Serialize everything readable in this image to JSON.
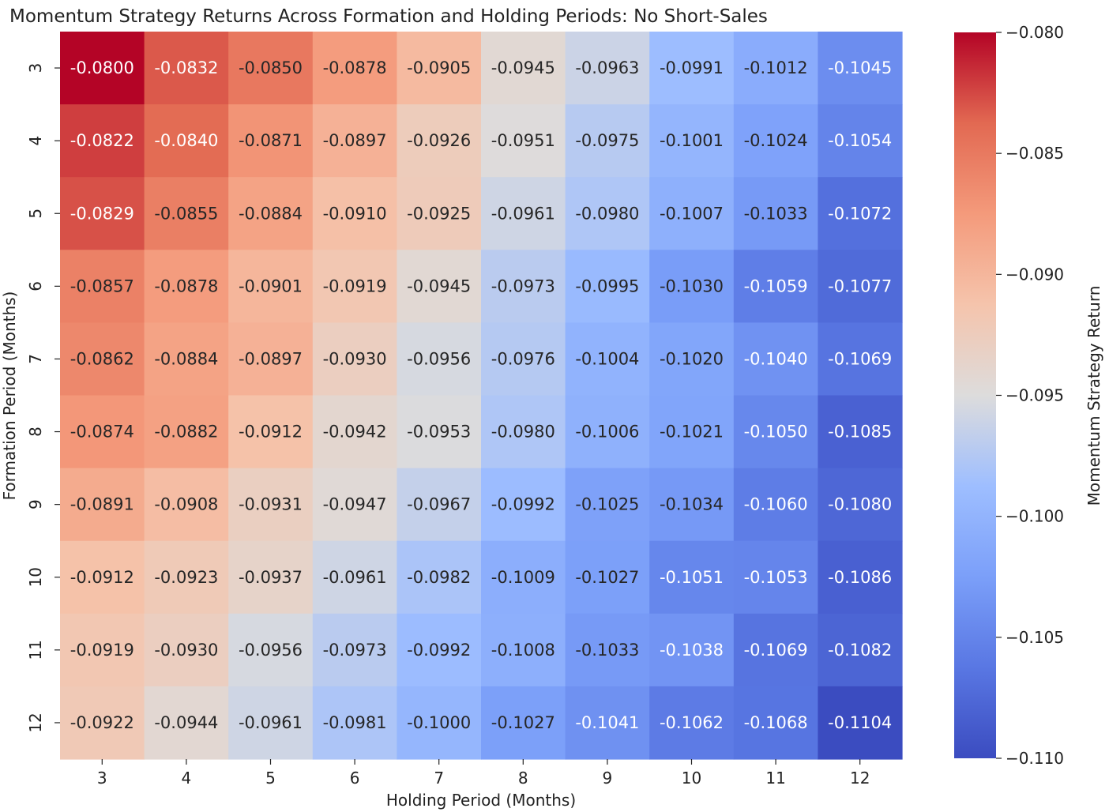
{
  "chart_data": {
    "type": "heatmap",
    "title": "Momentum Strategy Returns Across Formation and Holding Periods: No Short-Sales",
    "xlabel": "Holding Period (Months)",
    "ylabel": "Formation Period (Months)",
    "x_categories": [
      "3",
      "4",
      "5",
      "6",
      "7",
      "8",
      "9",
      "10",
      "11",
      "12"
    ],
    "y_categories": [
      "3",
      "4",
      "5",
      "6",
      "7",
      "8",
      "9",
      "10",
      "11",
      "12"
    ],
    "values": [
      [
        -0.08,
        -0.0832,
        -0.085,
        -0.0878,
        -0.0905,
        -0.0945,
        -0.0963,
        -0.0991,
        -0.1012,
        -0.1045
      ],
      [
        -0.0822,
        -0.084,
        -0.0871,
        -0.0897,
        -0.0926,
        -0.0951,
        -0.0975,
        -0.1001,
        -0.1024,
        -0.1054
      ],
      [
        -0.0829,
        -0.0855,
        -0.0884,
        -0.091,
        -0.0925,
        -0.0961,
        -0.098,
        -0.1007,
        -0.1033,
        -0.1072
      ],
      [
        -0.0857,
        -0.0878,
        -0.0901,
        -0.0919,
        -0.0945,
        -0.0973,
        -0.0995,
        -0.103,
        -0.1059,
        -0.1077
      ],
      [
        -0.0862,
        -0.0884,
        -0.0897,
        -0.093,
        -0.0956,
        -0.0976,
        -0.1004,
        -0.102,
        -0.104,
        -0.1069
      ],
      [
        -0.0874,
        -0.0882,
        -0.0912,
        -0.0942,
        -0.0953,
        -0.098,
        -0.1006,
        -0.1021,
        -0.105,
        -0.1085
      ],
      [
        -0.0891,
        -0.0908,
        -0.0931,
        -0.0947,
        -0.0967,
        -0.0992,
        -0.1025,
        -0.1034,
        -0.106,
        -0.108
      ],
      [
        -0.0912,
        -0.0923,
        -0.0937,
        -0.0961,
        -0.0982,
        -0.1009,
        -0.1027,
        -0.1051,
        -0.1053,
        -0.1086
      ],
      [
        -0.0919,
        -0.093,
        -0.0956,
        -0.0973,
        -0.0992,
        -0.1008,
        -0.1033,
        -0.1038,
        -0.1069,
        -0.1082
      ],
      [
        -0.0922,
        -0.0944,
        -0.0961,
        -0.0981,
        -0.1,
        -0.1027,
        -0.1041,
        -0.1062,
        -0.1068,
        -0.1104
      ]
    ],
    "colormap": "coolwarm",
    "vmin": -0.1104,
    "vmax": -0.08,
    "colorbar": {
      "label": "Momentum Strategy Return",
      "ticks": [
        -0.08,
        -0.085,
        -0.09,
        -0.095,
        -0.1,
        -0.105,
        -0.11
      ],
      "tick_labels": [
        "−0.080",
        "−0.085",
        "−0.090",
        "−0.095",
        "−0.100",
        "−0.105",
        "−0.110"
      ]
    },
    "grid": false,
    "legend": "none"
  }
}
